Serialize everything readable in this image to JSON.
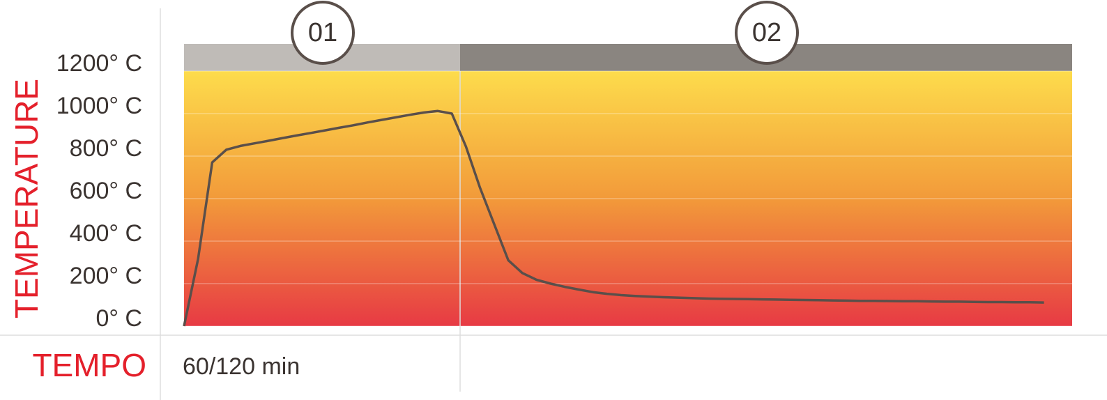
{
  "chart_data": {
    "type": "line",
    "ylabel": "TEMPERATURE",
    "xlabel": "TEMPO",
    "duration_label": "60/120 min",
    "phases": [
      "01",
      "02"
    ],
    "categories": [
      null,
      null,
      null,
      null,
      null,
      null,
      null,
      null,
      null,
      null,
      null,
      null,
      null,
      null,
      null,
      null,
      null,
      null,
      null,
      null,
      null,
      null,
      null,
      null,
      null,
      null,
      null,
      null,
      null,
      null,
      null,
      null,
      null,
      null,
      null,
      null,
      null,
      null,
      null,
      null,
      null,
      null,
      null,
      null,
      null,
      null,
      null,
      null,
      null,
      null,
      null,
      null,
      null,
      null,
      null,
      null,
      null,
      null,
      null,
      null,
      null,
      null,
      null,
      null
    ],
    "values": [
      0,
      317,
      770,
      830,
      848,
      860,
      872,
      885,
      897,
      909,
      921,
      933,
      945,
      958,
      970,
      982,
      994,
      1005,
      1012,
      1000,
      845,
      650,
      480,
      310,
      250,
      218,
      200,
      185,
      172,
      160,
      152,
      146,
      142,
      139,
      136,
      134,
      132,
      130,
      129,
      128,
      127,
      126,
      125,
      124,
      123,
      122,
      121,
      120,
      119,
      119,
      118,
      117,
      117,
      116,
      115,
      115,
      114,
      113,
      113,
      112,
      112,
      111,
      null,
      null
    ],
    "color": "#5a4f4a",
    "ylim": [
      0,
      1200
    ],
    "yticks": [
      {
        "value": 0,
        "label": "0° C"
      },
      {
        "value": 200,
        "label": "200° C"
      },
      {
        "value": 400,
        "label": "400° C"
      },
      {
        "value": 600,
        "label": "600° C"
      },
      {
        "value": 800,
        "label": "800° C"
      },
      {
        "value": 1000,
        "label": "1000° C"
      },
      {
        "value": 1200,
        "label": "1200° C"
      }
    ],
    "grid": true
  }
}
